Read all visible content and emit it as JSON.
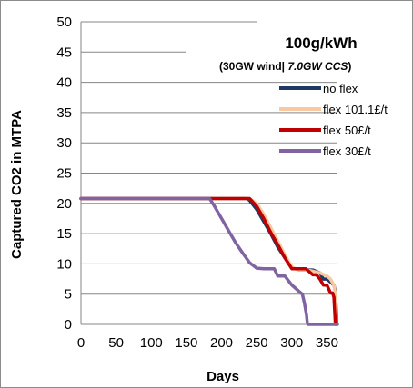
{
  "chart_data": {
    "type": "line",
    "title": "100g/kWh",
    "subtitle": {
      "bold_part": "(30GW wind| ",
      "italic_part": "7.0GW CCS",
      "end": ")"
    },
    "xlabel": "Days",
    "ylabel": "Captured CO2 in MTPA",
    "xlim": [
      0,
      365
    ],
    "ylim": [
      0,
      50
    ],
    "xticks": [
      0,
      50,
      100,
      150,
      200,
      250,
      300,
      350
    ],
    "yticks": [
      0,
      5,
      10,
      15,
      20,
      25,
      30,
      35,
      40,
      45,
      50
    ],
    "grid": "horizontal",
    "legend_position": "right",
    "series": [
      {
        "name": "no flex",
        "color": "#1f3864",
        "x": [
          0,
          236,
          240,
          250,
          260,
          270,
          280,
          290,
          300,
          305,
          310,
          320,
          330,
          340,
          345,
          350,
          355,
          360,
          362,
          363,
          364
        ],
        "y": [
          20.8,
          20.8,
          20.5,
          19.0,
          17.0,
          15.0,
          12.8,
          11.0,
          9.3,
          9.2,
          9.0,
          9.0,
          9.0,
          8.5,
          7.5,
          7.5,
          7.0,
          6.5,
          5.5,
          3.0,
          0
        ]
      },
      {
        "name": "flex 101.1£/t",
        "color": "#f9c8a0",
        "x": [
          0,
          235,
          240,
          250,
          260,
          270,
          280,
          290,
          300,
          305,
          310,
          320,
          330,
          340,
          350,
          355,
          360,
          362,
          363
        ],
        "y": [
          20.8,
          20.8,
          20.8,
          20.0,
          18.2,
          16.0,
          13.8,
          11.5,
          9.5,
          9.2,
          9.0,
          9.0,
          8.8,
          8.5,
          8.0,
          7.5,
          6.5,
          5.0,
          0
        ]
      },
      {
        "name": "flex 50£/t",
        "color": "#c00000",
        "x": [
          0,
          232,
          240,
          250,
          260,
          270,
          280,
          290,
          300,
          310,
          320,
          330,
          335,
          340,
          345,
          350,
          355,
          358,
          360,
          362
        ],
        "y": [
          20.8,
          20.8,
          20.8,
          19.5,
          17.5,
          15.2,
          13.2,
          11.0,
          9.2,
          9.2,
          9.2,
          8.2,
          8.2,
          7.5,
          6.5,
          6.5,
          5.2,
          5.2,
          4.5,
          0
        ]
      },
      {
        "name": "flex 30£/t",
        "color": "#8064a2",
        "x": [
          0,
          183,
          190,
          200,
          210,
          220,
          230,
          240,
          250,
          260,
          265,
          270,
          275,
          280,
          290,
          300,
          305,
          310,
          315,
          318,
          321,
          322,
          323,
          345,
          365
        ],
        "y": [
          20.8,
          20.8,
          19.5,
          17.5,
          15.5,
          13.5,
          11.8,
          10.2,
          9.3,
          9.2,
          9.2,
          9.2,
          9.2,
          8.0,
          8.0,
          6.5,
          6.0,
          5.5,
          5.0,
          3.5,
          1.5,
          0.3,
          0,
          0,
          0
        ]
      }
    ]
  }
}
